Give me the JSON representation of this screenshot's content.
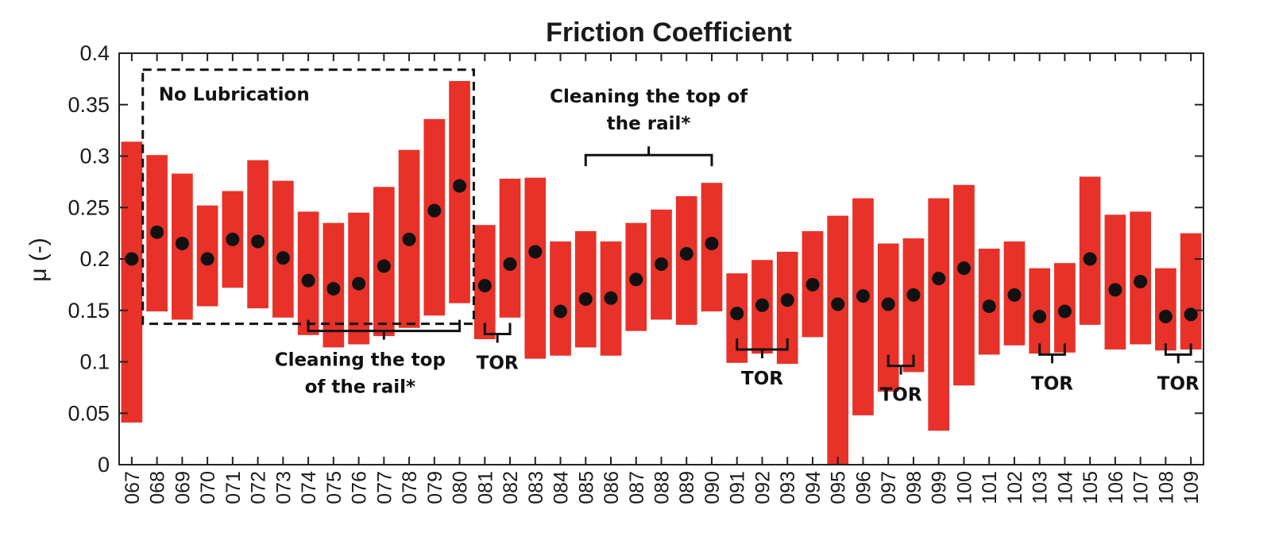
{
  "chart_data": {
    "type": "bar",
    "title": "Friction Coefficient",
    "ylabel": "μ (-)",
    "xlabel": "",
    "ylim": [
      0,
      0.4
    ],
    "yticks": [
      "0",
      "0.05",
      "0.1",
      "0.15",
      "0.2",
      "0.25",
      "0.3",
      "0.35",
      "0.4"
    ],
    "ytick_values": [
      0,
      0.05,
      0.1,
      0.15,
      0.2,
      0.25,
      0.3,
      0.35,
      0.4
    ],
    "categories": [
      "067",
      "068",
      "069",
      "070",
      "071",
      "072",
      "073",
      "074",
      "075",
      "076",
      "077",
      "078",
      "079",
      "080",
      "081",
      "082",
      "083",
      "084",
      "085",
      "086",
      "087",
      "088",
      "089",
      "090",
      "091",
      "092",
      "093",
      "094",
      "095",
      "096",
      "097",
      "098",
      "099",
      "100",
      "101",
      "102",
      "103",
      "104",
      "105",
      "106",
      "107",
      "108",
      "109"
    ],
    "series": [
      {
        "mean": [
          0.2,
          0.226,
          0.215,
          0.2,
          0.219,
          0.217,
          0.201,
          0.179,
          0.171,
          0.176,
          0.193,
          0.219,
          0.247,
          0.271,
          0.174,
          0.195,
          0.207,
          0.149,
          0.161,
          0.162,
          0.18,
          0.195,
          0.205,
          0.215,
          0.147,
          0.155,
          0.16,
          0.175,
          0.156,
          0.164,
          0.156,
          0.165,
          0.181,
          0.191,
          0.154,
          0.165,
          0.144,
          0.149,
          0.2,
          0.17,
          0.178,
          0.144,
          0.146
        ],
        "low": [
          0.041,
          0.149,
          0.141,
          0.154,
          0.172,
          0.152,
          0.143,
          0.126,
          0.114,
          0.117,
          0.125,
          0.133,
          0.145,
          0.157,
          0.122,
          0.143,
          0.103,
          0.106,
          0.114,
          0.106,
          0.13,
          0.141,
          0.136,
          0.149,
          0.099,
          0.108,
          0.098,
          0.124,
          0.0,
          0.048,
          0.071,
          0.09,
          0.033,
          0.077,
          0.107,
          0.116,
          0.108,
          0.109,
          0.136,
          0.112,
          0.117,
          0.111,
          0.112
        ],
        "high": [
          0.314,
          0.301,
          0.283,
          0.252,
          0.266,
          0.296,
          0.276,
          0.246,
          0.235,
          0.245,
          0.27,
          0.306,
          0.336,
          0.373,
          0.233,
          0.278,
          0.279,
          0.217,
          0.227,
          0.217,
          0.235,
          0.248,
          0.261,
          0.274,
          0.186,
          0.199,
          0.207,
          0.227,
          0.242,
          0.259,
          0.215,
          0.22,
          0.259,
          0.272,
          0.21,
          0.217,
          0.191,
          0.196,
          0.28,
          0.243,
          0.246,
          0.191,
          0.225
        ]
      }
    ],
    "colors": {
      "bar": "#e83128",
      "mean_dot": "#111111",
      "axis": "#222222"
    },
    "annotations": [
      {
        "text": "No Lubrication",
        "kind": "dashed-box",
        "from": "068",
        "to": "080",
        "ylim": [
          0.137,
          0.384
        ]
      },
      {
        "text": "Cleaning the top of the rail*",
        "lines": [
          "Cleaning the top",
          "of the rail*"
        ],
        "kind": "bracket-below",
        "from": "074",
        "to": "080",
        "y": 0.13
      },
      {
        "text": "Cleaning the top of the rail*",
        "lines": [
          "Cleaning the top of",
          "the rail*"
        ],
        "kind": "bracket-above",
        "from": "085",
        "to": "090",
        "y": 0.301
      },
      {
        "text": "TOR",
        "lines": [
          "TOR"
        ],
        "kind": "bracket-below",
        "from": "081",
        "to": "082",
        "y": 0.127
      },
      {
        "text": "TOR",
        "lines": [
          "TOR"
        ],
        "kind": "bracket-below",
        "from": "091",
        "to": "093",
        "y": 0.112
      },
      {
        "text": "TOR",
        "lines": [
          "TOR"
        ],
        "kind": "bracket-below",
        "from": "097",
        "to": "098",
        "y": 0.096
      },
      {
        "text": "TOR",
        "lines": [
          "TOR"
        ],
        "kind": "bracket-below",
        "from": "103",
        "to": "104",
        "y": 0.107
      },
      {
        "text": "TOR",
        "lines": [
          "TOR"
        ],
        "kind": "bracket-below",
        "from": "108",
        "to": "109",
        "y": 0.107
      }
    ]
  }
}
